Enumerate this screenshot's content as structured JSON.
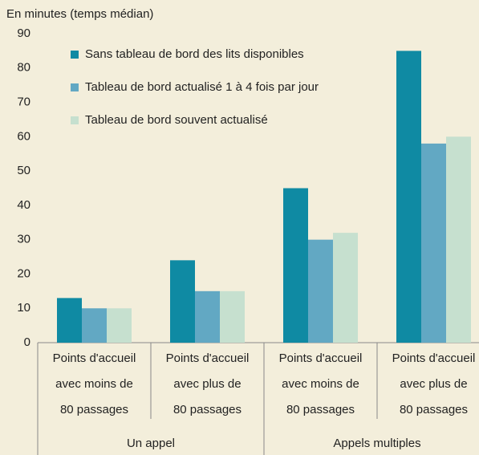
{
  "chart_data": {
    "type": "bar",
    "ylabel": "En minutes (temps médian)",
    "categories": [
      [
        "Points d'accueil",
        "avec moins de",
        "80 passages"
      ],
      [
        "Points d'accueil",
        "avec plus de",
        "80 passages"
      ],
      [
        "Points d'accueil",
        "avec moins de",
        "80 passages"
      ],
      [
        "Points d'accueil",
        "avec plus de",
        "80 passages"
      ]
    ],
    "groups": [
      "Un appel",
      "Appels multiples"
    ],
    "series": [
      {
        "name": "Sans tableau de bord des lits disponibles",
        "color": "#0f8aa3",
        "values": [
          13,
          24,
          45,
          85
        ]
      },
      {
        "name": "Tableau de bord actualisé 1 à 4 fois par jour",
        "color": "#62a8c3",
        "values": [
          10,
          15,
          30,
          58
        ]
      },
      {
        "name": "Tableau de bord souvent actualisé",
        "color": "#c6e0cf",
        "values": [
          10,
          15,
          32,
          60
        ]
      }
    ],
    "ylim": [
      0,
      90
    ],
    "yticks": [
      0,
      10,
      20,
      30,
      40,
      50,
      60,
      70,
      80,
      90
    ],
    "grid": false,
    "legend": "upper left"
  }
}
